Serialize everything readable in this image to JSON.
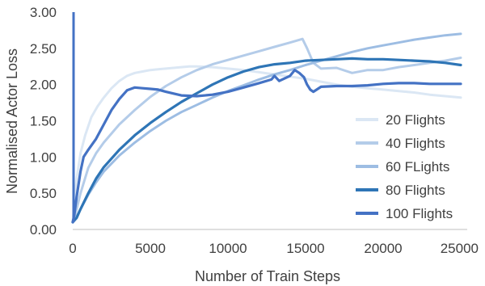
{
  "chart_data": {
    "type": "line",
    "title": "",
    "xlabel": "Number of Train Steps",
    "ylabel": "Normalised Actor Loss",
    "xlim": [
      0,
      25000
    ],
    "ylim": [
      0,
      3.0
    ],
    "xticks": [
      0,
      5000,
      10000,
      15000,
      20000,
      25000
    ],
    "xtick_labels": [
      "0",
      "5000",
      "10000",
      "15000",
      "20000",
      "25000"
    ],
    "yticks": [
      0,
      0.5,
      1.0,
      1.5,
      2.0,
      2.5,
      3.0
    ],
    "ytick_labels": [
      "0.00",
      "0.50",
      "1.00",
      "1.50",
      "2.00",
      "2.50",
      "3.00"
    ],
    "grid": false,
    "legend_position": "right",
    "series": [
      {
        "name": "20 Flights",
        "color": "#dbe7f4",
        "x": [
          0,
          100,
          250,
          500,
          800,
          1200,
          1600,
          2000,
          2500,
          3000,
          3500,
          4000,
          4500,
          5000,
          5500,
          6000,
          6500,
          7000,
          7500,
          8000,
          9000,
          10000,
          11000,
          12000,
          13000,
          14000,
          15000,
          16000,
          17000,
          18000,
          19000,
          20000,
          21000,
          22000,
          23000,
          24000,
          25000
        ],
        "y": [
          0.1,
          0.35,
          0.7,
          1.05,
          1.3,
          1.55,
          1.7,
          1.82,
          1.95,
          2.05,
          2.12,
          2.16,
          2.18,
          2.2,
          2.21,
          2.22,
          2.23,
          2.24,
          2.25,
          2.25,
          2.24,
          2.22,
          2.2,
          2.17,
          2.14,
          2.11,
          2.08,
          2.04,
          2.0,
          1.97,
          1.95,
          1.93,
          1.91,
          1.89,
          1.86,
          1.84,
          1.82
        ]
      },
      {
        "name": "40 Flights",
        "color": "#b4cce9",
        "x": [
          0,
          250,
          500,
          1000,
          1500,
          2000,
          3000,
          4000,
          5000,
          6000,
          7000,
          8000,
          9000,
          10000,
          11000,
          12000,
          13000,
          14000,
          14800,
          15100,
          15500,
          16000,
          17000,
          18000,
          19000,
          20000,
          21000,
          22000,
          23000,
          24000,
          25000
        ],
        "y": [
          0.1,
          0.28,
          0.5,
          0.85,
          1.05,
          1.2,
          1.45,
          1.65,
          1.83,
          1.98,
          2.1,
          2.2,
          2.28,
          2.34,
          2.4,
          2.46,
          2.52,
          2.58,
          2.63,
          2.5,
          2.3,
          2.22,
          2.23,
          2.16,
          2.2,
          2.2,
          2.24,
          2.27,
          2.3,
          2.33,
          2.37
        ]
      },
      {
        "name": "60 FLights",
        "color": "#9dbde3",
        "x": [
          0,
          300,
          600,
          1000,
          1500,
          2000,
          3000,
          4000,
          5000,
          6000,
          7000,
          8000,
          9000,
          10000,
          11000,
          12000,
          13000,
          14000,
          15000,
          16000,
          17000,
          18000,
          19000,
          20000,
          21000,
          22000,
          23000,
          24000,
          25000
        ],
        "y": [
          0.1,
          0.2,
          0.32,
          0.48,
          0.65,
          0.8,
          1.02,
          1.2,
          1.36,
          1.5,
          1.62,
          1.72,
          1.82,
          1.91,
          1.99,
          2.07,
          2.14,
          2.2,
          2.27,
          2.33,
          2.39,
          2.45,
          2.5,
          2.54,
          2.58,
          2.62,
          2.65,
          2.68,
          2.7
        ]
      },
      {
        "name": "80 Flights",
        "color": "#2e75b6",
        "x": [
          0,
          250,
          500,
          1000,
          1500,
          2000,
          3000,
          4000,
          5000,
          6000,
          7000,
          8000,
          9000,
          10000,
          11000,
          12000,
          13000,
          14000,
          15000,
          16000,
          17000,
          18000,
          19000,
          20000,
          21000,
          22000,
          23000,
          24000,
          25000
        ],
        "y": [
          0.1,
          0.16,
          0.28,
          0.5,
          0.7,
          0.86,
          1.1,
          1.3,
          1.47,
          1.62,
          1.76,
          1.88,
          2.0,
          2.1,
          2.18,
          2.24,
          2.28,
          2.3,
          2.33,
          2.34,
          2.35,
          2.36,
          2.35,
          2.35,
          2.34,
          2.33,
          2.32,
          2.3,
          2.27
        ]
      },
      {
        "name": "100 Flights",
        "color": "#4472c4",
        "x": [
          0,
          100,
          250,
          500,
          700,
          1000,
          1500,
          2000,
          2500,
          3000,
          3500,
          4000,
          4500,
          5000,
          5500,
          6000,
          7000,
          8000,
          9000,
          10000,
          11000,
          12000,
          12800,
          13000,
          13300,
          14000,
          14300,
          14600,
          14900,
          15100,
          15300,
          15500,
          16000,
          17000,
          18000,
          19000,
          20000,
          21000,
          22000,
          23000,
          24000,
          25000
        ],
        "y": [
          0.1,
          0.2,
          0.45,
          0.8,
          1.0,
          1.1,
          1.25,
          1.45,
          1.65,
          1.8,
          1.92,
          1.96,
          1.95,
          1.94,
          1.93,
          1.9,
          1.85,
          1.84,
          1.86,
          1.9,
          1.96,
          2.02,
          2.07,
          2.12,
          2.05,
          2.12,
          2.2,
          2.16,
          2.1,
          2.0,
          1.93,
          1.9,
          1.97,
          1.98,
          1.98,
          1.99,
          2.01,
          2.02,
          2.02,
          2.01,
          2.01,
          2.01
        ]
      }
    ]
  }
}
